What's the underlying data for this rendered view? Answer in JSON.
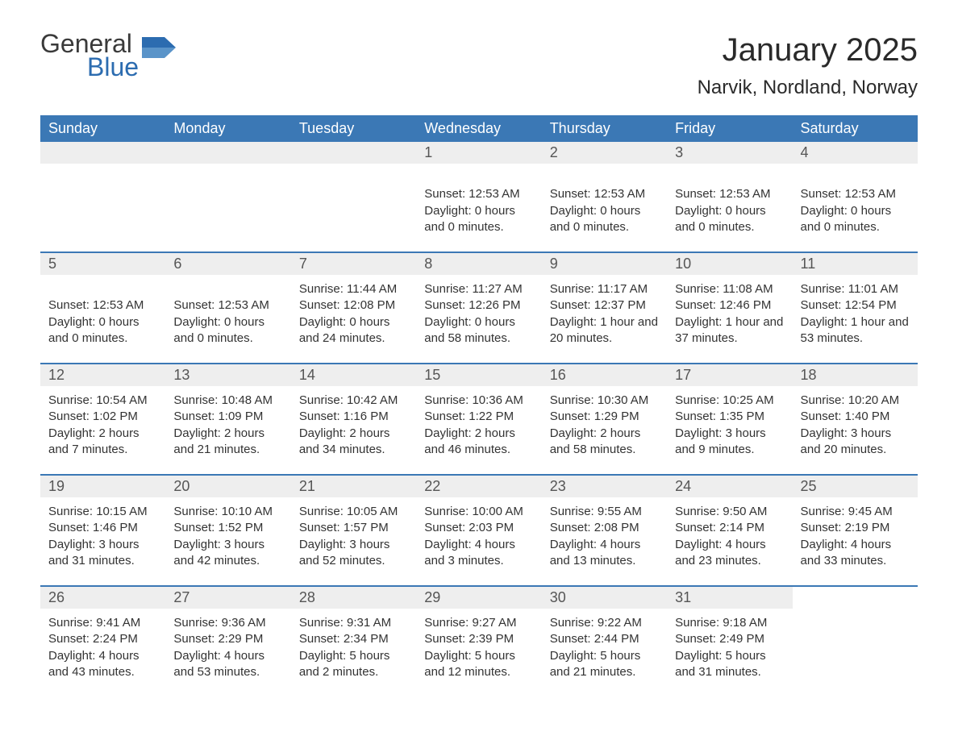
{
  "logo": {
    "text1": "General",
    "text2": "Blue",
    "color_general": "#3a3a3a",
    "color_blue": "#2c6cb0",
    "flag_color": "#2c6cb0"
  },
  "title": "January 2025",
  "location": "Narvik, Nordland, Norway",
  "colors": {
    "header_bg": "#3b78b5",
    "header_text": "#ffffff",
    "daynum_bg": "#eeeeee",
    "daynum_text": "#555555",
    "body_text": "#333333",
    "border": "#3b78b5",
    "page_bg": "#ffffff"
  },
  "day_headers": [
    "Sunday",
    "Monday",
    "Tuesday",
    "Wednesday",
    "Thursday",
    "Friday",
    "Saturday"
  ],
  "weeks": [
    [
      {
        "empty": true
      },
      {
        "empty": true
      },
      {
        "empty": true
      },
      {
        "num": "1",
        "sunrise": "",
        "sunset": "Sunset: 12:53 AM",
        "daylight": "Daylight: 0 hours and 0 minutes.",
        "blank_line": true
      },
      {
        "num": "2",
        "sunrise": "",
        "sunset": "Sunset: 12:53 AM",
        "daylight": "Daylight: 0 hours and 0 minutes.",
        "blank_line": true
      },
      {
        "num": "3",
        "sunrise": "",
        "sunset": "Sunset: 12:53 AM",
        "daylight": "Daylight: 0 hours and 0 minutes.",
        "blank_line": true
      },
      {
        "num": "4",
        "sunrise": "",
        "sunset": "Sunset: 12:53 AM",
        "daylight": "Daylight: 0 hours and 0 minutes.",
        "blank_line": true
      }
    ],
    [
      {
        "num": "5",
        "sunrise": "",
        "sunset": "Sunset: 12:53 AM",
        "daylight": "Daylight: 0 hours and 0 minutes.",
        "blank_line": true
      },
      {
        "num": "6",
        "sunrise": "",
        "sunset": "Sunset: 12:53 AM",
        "daylight": "Daylight: 0 hours and 0 minutes.",
        "blank_line": true
      },
      {
        "num": "7",
        "sunrise": "Sunrise: 11:44 AM",
        "sunset": "Sunset: 12:08 PM",
        "daylight": "Daylight: 0 hours and 24 minutes."
      },
      {
        "num": "8",
        "sunrise": "Sunrise: 11:27 AM",
        "sunset": "Sunset: 12:26 PM",
        "daylight": "Daylight: 0 hours and 58 minutes."
      },
      {
        "num": "9",
        "sunrise": "Sunrise: 11:17 AM",
        "sunset": "Sunset: 12:37 PM",
        "daylight": "Daylight: 1 hour and 20 minutes."
      },
      {
        "num": "10",
        "sunrise": "Sunrise: 11:08 AM",
        "sunset": "Sunset: 12:46 PM",
        "daylight": "Daylight: 1 hour and 37 minutes."
      },
      {
        "num": "11",
        "sunrise": "Sunrise: 11:01 AM",
        "sunset": "Sunset: 12:54 PM",
        "daylight": "Daylight: 1 hour and 53 minutes."
      }
    ],
    [
      {
        "num": "12",
        "sunrise": "Sunrise: 10:54 AM",
        "sunset": "Sunset: 1:02 PM",
        "daylight": "Daylight: 2 hours and 7 minutes."
      },
      {
        "num": "13",
        "sunrise": "Sunrise: 10:48 AM",
        "sunset": "Sunset: 1:09 PM",
        "daylight": "Daylight: 2 hours and 21 minutes."
      },
      {
        "num": "14",
        "sunrise": "Sunrise: 10:42 AM",
        "sunset": "Sunset: 1:16 PM",
        "daylight": "Daylight: 2 hours and 34 minutes."
      },
      {
        "num": "15",
        "sunrise": "Sunrise: 10:36 AM",
        "sunset": "Sunset: 1:22 PM",
        "daylight": "Daylight: 2 hours and 46 minutes."
      },
      {
        "num": "16",
        "sunrise": "Sunrise: 10:30 AM",
        "sunset": "Sunset: 1:29 PM",
        "daylight": "Daylight: 2 hours and 58 minutes."
      },
      {
        "num": "17",
        "sunrise": "Sunrise: 10:25 AM",
        "sunset": "Sunset: 1:35 PM",
        "daylight": "Daylight: 3 hours and 9 minutes."
      },
      {
        "num": "18",
        "sunrise": "Sunrise: 10:20 AM",
        "sunset": "Sunset: 1:40 PM",
        "daylight": "Daylight: 3 hours and 20 minutes."
      }
    ],
    [
      {
        "num": "19",
        "sunrise": "Sunrise: 10:15 AM",
        "sunset": "Sunset: 1:46 PM",
        "daylight": "Daylight: 3 hours and 31 minutes."
      },
      {
        "num": "20",
        "sunrise": "Sunrise: 10:10 AM",
        "sunset": "Sunset: 1:52 PM",
        "daylight": "Daylight: 3 hours and 42 minutes."
      },
      {
        "num": "21",
        "sunrise": "Sunrise: 10:05 AM",
        "sunset": "Sunset: 1:57 PM",
        "daylight": "Daylight: 3 hours and 52 minutes."
      },
      {
        "num": "22",
        "sunrise": "Sunrise: 10:00 AM",
        "sunset": "Sunset: 2:03 PM",
        "daylight": "Daylight: 4 hours and 3 minutes."
      },
      {
        "num": "23",
        "sunrise": "Sunrise: 9:55 AM",
        "sunset": "Sunset: 2:08 PM",
        "daylight": "Daylight: 4 hours and 13 minutes."
      },
      {
        "num": "24",
        "sunrise": "Sunrise: 9:50 AM",
        "sunset": "Sunset: 2:14 PM",
        "daylight": "Daylight: 4 hours and 23 minutes."
      },
      {
        "num": "25",
        "sunrise": "Sunrise: 9:45 AM",
        "sunset": "Sunset: 2:19 PM",
        "daylight": "Daylight: 4 hours and 33 minutes."
      }
    ],
    [
      {
        "num": "26",
        "sunrise": "Sunrise: 9:41 AM",
        "sunset": "Sunset: 2:24 PM",
        "daylight": "Daylight: 4 hours and 43 minutes."
      },
      {
        "num": "27",
        "sunrise": "Sunrise: 9:36 AM",
        "sunset": "Sunset: 2:29 PM",
        "daylight": "Daylight: 4 hours and 53 minutes."
      },
      {
        "num": "28",
        "sunrise": "Sunrise: 9:31 AM",
        "sunset": "Sunset: 2:34 PM",
        "daylight": "Daylight: 5 hours and 2 minutes."
      },
      {
        "num": "29",
        "sunrise": "Sunrise: 9:27 AM",
        "sunset": "Sunset: 2:39 PM",
        "daylight": "Daylight: 5 hours and 12 minutes."
      },
      {
        "num": "30",
        "sunrise": "Sunrise: 9:22 AM",
        "sunset": "Sunset: 2:44 PM",
        "daylight": "Daylight: 5 hours and 21 minutes."
      },
      {
        "num": "31",
        "sunrise": "Sunrise: 9:18 AM",
        "sunset": "Sunset: 2:49 PM",
        "daylight": "Daylight: 5 hours and 31 minutes."
      },
      {
        "empty": true,
        "no_bar": true
      }
    ]
  ]
}
